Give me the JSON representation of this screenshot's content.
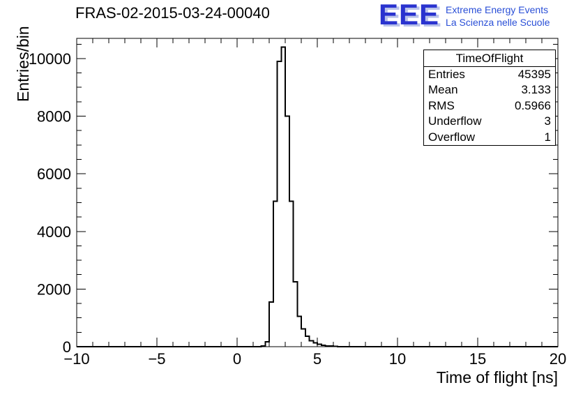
{
  "logo": {
    "text": "EEE",
    "line1": "Extreme Energy Events",
    "line2": "La Scienza nelle Scuole",
    "accent_color": "#2a33cf"
  },
  "stats": {
    "title": "TimeOfFlight",
    "rows": [
      {
        "label": "Entries",
        "value": "45395"
      },
      {
        "label": "Mean",
        "value": "3.133"
      },
      {
        "label": "RMS",
        "value": "0.5966"
      },
      {
        "label": "Underflow",
        "value": "3"
      },
      {
        "label": "Overflow",
        "value": "1"
      }
    ]
  },
  "chart_data": {
    "type": "bar",
    "title": "FRAS-02-2015-03-24-00040",
    "xlabel": "Time of flight [ns]",
    "ylabel": "Entries/bin",
    "xlim": [
      -10,
      20
    ],
    "ylim": [
      0,
      10700
    ],
    "grid": false,
    "legend": "none",
    "line_color": "#000000",
    "x_ticks": [
      {
        "v": -10,
        "label": "−10"
      },
      {
        "v": -5,
        "label": "−5"
      },
      {
        "v": 0,
        "label": "0"
      },
      {
        "v": 5,
        "label": "5"
      },
      {
        "v": 10,
        "label": "10"
      },
      {
        "v": 15,
        "label": "15"
      },
      {
        "v": 20,
        "label": "20"
      }
    ],
    "y_ticks": [
      {
        "v": 0,
        "label": "0"
      },
      {
        "v": 2000,
        "label": "2000"
      },
      {
        "v": 4000,
        "label": "4000"
      },
      {
        "v": 6000,
        "label": "6000"
      },
      {
        "v": 8000,
        "label": "8000"
      },
      {
        "v": 10000,
        "label": "10000"
      }
    ],
    "x_minor_step": 1,
    "y_minor_step": 500,
    "bins": {
      "start": 1.5,
      "width": 0.25,
      "counts": [
        30,
        170,
        1550,
        5050,
        9900,
        10400,
        8000,
        5050,
        2250,
        1050,
        620,
        360,
        210,
        130,
        80,
        50,
        30,
        20,
        10,
        5
      ]
    },
    "entries": 45395,
    "mean": 3.133,
    "rms": 0.5966,
    "underflow": 3,
    "overflow": 1
  }
}
